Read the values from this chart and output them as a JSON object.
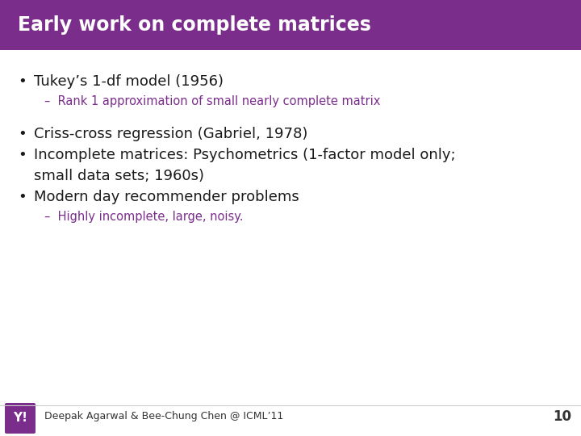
{
  "title": "Early work on complete matrices",
  "title_bg_color": "#7B2D8B",
  "title_text_color": "#FFFFFF",
  "slide_bg_color": "#FFFFFF",
  "bullet_color": "#1A1A1A",
  "sub_bullet_color": "#7B2D8B",
  "footer_text": "Deepak Agarwal & Bee-Chung Chen @ ICML’11",
  "footer_number": "10",
  "footer_line_color": "#CCCCCC",
  "title_font_size": 17,
  "bullet1_font_size": 13,
  "bullet2_font_size": 10.5,
  "footer_font_size": 9,
  "bullet_lines": [
    {
      "text": "Tukey’s 1-df model (1956)",
      "level": 1,
      "color": "#1A1A1A",
      "spacer_after": false
    },
    {
      "text": "–  Rank 1 approximation of small nearly complete matrix",
      "level": 2,
      "color": "#7B2D8B",
      "spacer_after": true
    },
    {
      "text": "Criss-cross regression (Gabriel, 1978)",
      "level": 1,
      "color": "#1A1A1A",
      "spacer_after": false
    },
    {
      "text": "Incomplete matrices: Psychometrics (1-factor model only;",
      "level": 1,
      "color": "#1A1A1A",
      "spacer_after": false
    },
    {
      "text": "small data sets; 1960s)",
      "level": 1,
      "color": "#1A1A1A",
      "no_bullet": true,
      "spacer_after": false
    },
    {
      "text": "Modern day recommender problems",
      "level": 1,
      "color": "#1A1A1A",
      "spacer_after": false
    },
    {
      "text": "–  Highly incomplete, large, noisy.",
      "level": 2,
      "color": "#7B2D8B",
      "spacer_after": false
    }
  ]
}
